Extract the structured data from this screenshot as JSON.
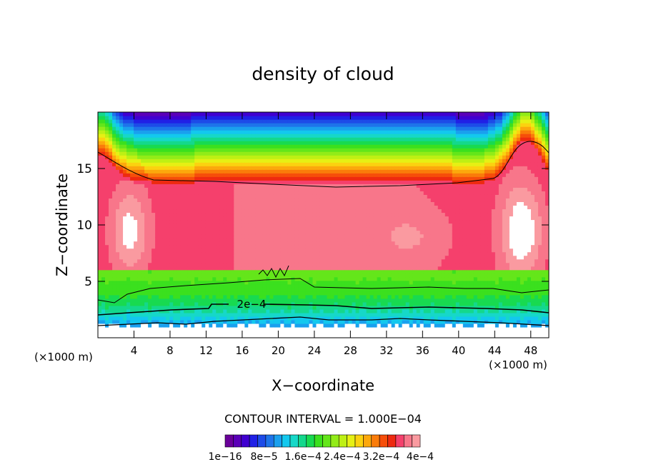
{
  "chart_data": {
    "type": "heatmap",
    "title": "density of cloud",
    "xlabel": "X−coordinate",
    "ylabel": "Z−coordinate",
    "x_unit_label": "(×1000 m)",
    "y_unit_label": "(×1000 m)",
    "xlim": [
      0,
      50
    ],
    "ylim": [
      0,
      20
    ],
    "x_ticks": [
      "4",
      "8",
      "12",
      "16",
      "20",
      "24",
      "28",
      "32",
      "36",
      "40",
      "44",
      "48"
    ],
    "y_ticks": [
      "5",
      "10",
      "15"
    ],
    "contour_interval_label": "CONTOUR INTERVAL = 1.000E−04",
    "contour_label": "2e−4",
    "colorbar_tick_labels": [
      "1e−16",
      "8e−5",
      "1.6e−4",
      "2.4e−4",
      "3.2e−4",
      "4e−4"
    ],
    "colorbar_colors": [
      "#6a009a",
      "#5b00b8",
      "#4000d0",
      "#2020e6",
      "#1d4be8",
      "#1e74ea",
      "#1aa0ee",
      "#13c8ee",
      "#16d8c8",
      "#14d88c",
      "#18da50",
      "#3be01e",
      "#64e61a",
      "#92ec18",
      "#bef014",
      "#e6f014",
      "#fbd210",
      "#fca80c",
      "#fa7c0a",
      "#f64e0a",
      "#ee2a10",
      "#f5406c",
      "#f8768a",
      "#fa9aa0"
    ],
    "z_range": [
      1e-16,
      0.00042
    ]
  }
}
